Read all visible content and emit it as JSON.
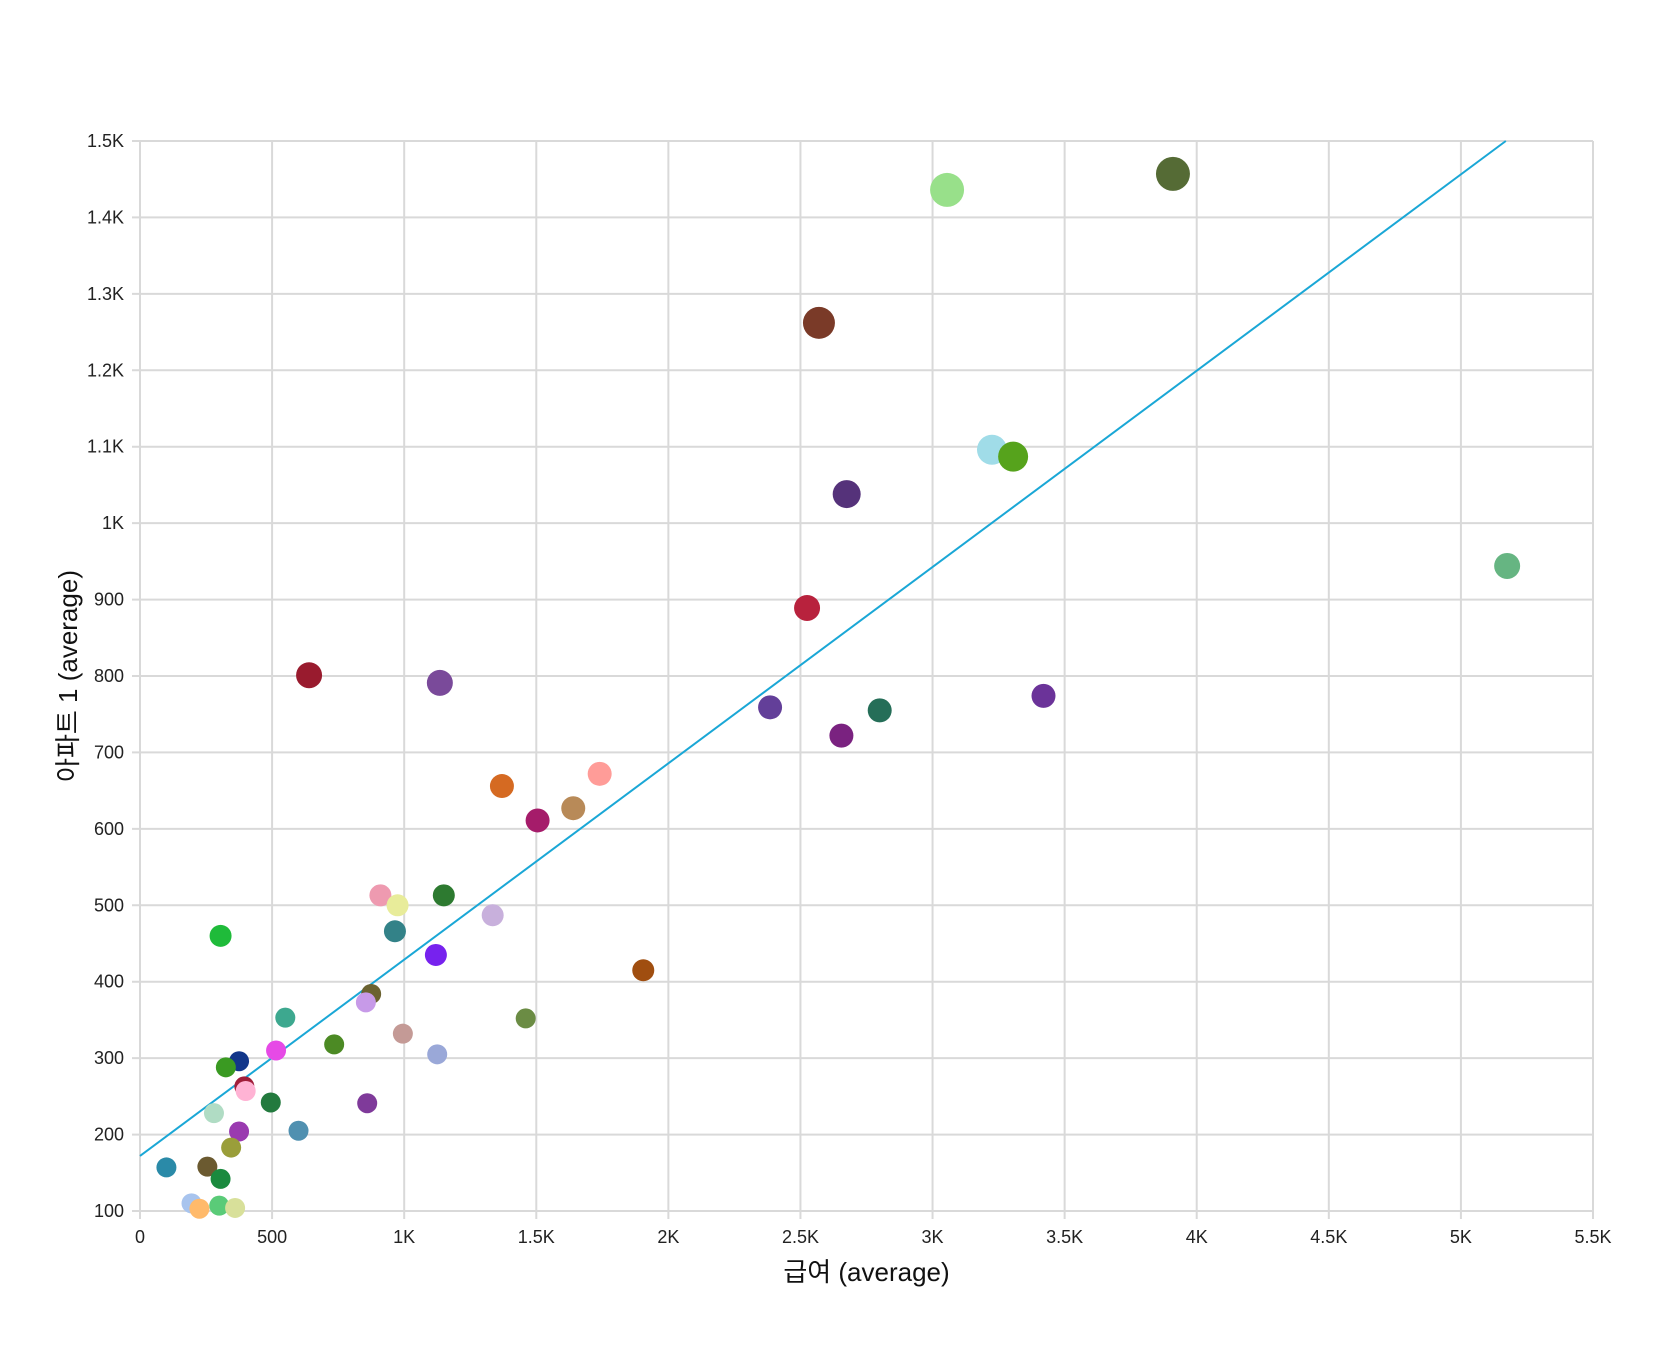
{
  "chart_data": {
    "type": "scatter",
    "title": "",
    "xlabel": "급여 (average)",
    "ylabel": "아파트 1 (average)",
    "xlim": [
      0,
      5500
    ],
    "ylim": [
      100,
      1500
    ],
    "x_ticks": [
      0,
      500,
      1000,
      1500,
      2000,
      2500,
      3000,
      3500,
      4000,
      4500,
      5000,
      5500
    ],
    "x_tick_labels": [
      "0",
      "500",
      "1K",
      "1.5K",
      "2K",
      "2.5K",
      "3K",
      "3.5K",
      "4K",
      "4.5K",
      "5K",
      "5.5K"
    ],
    "y_ticks": [
      100,
      200,
      300,
      400,
      500,
      600,
      700,
      800,
      900,
      1000,
      1100,
      1200,
      1300,
      1400,
      1500
    ],
    "y_tick_labels": [
      "100",
      "200",
      "300",
      "400",
      "500",
      "600",
      "700",
      "800",
      "900",
      "1K",
      "1.1K",
      "1.2K",
      "1.3K",
      "1.4K",
      "1.5K"
    ],
    "trendline": {
      "color": "#1aa7d6",
      "x": [
        0,
        5170
      ],
      "y": [
        172,
        1500
      ]
    },
    "points": [
      {
        "x": 3910,
        "y": 1457,
        "size": 17,
        "color": "#556b35"
      },
      {
        "x": 3055,
        "y": 1436,
        "size": 17,
        "color": "#98e08a"
      },
      {
        "x": 2570,
        "y": 1262,
        "size": 16,
        "color": "#7a3a28"
      },
      {
        "x": 3225,
        "y": 1096,
        "size": 15,
        "color": "#a0dce8"
      },
      {
        "x": 3305,
        "y": 1087,
        "size": 15,
        "color": "#56a31c"
      },
      {
        "x": 2675,
        "y": 1038,
        "size": 14,
        "color": "#55327a"
      },
      {
        "x": 5175,
        "y": 944,
        "size": 13,
        "color": "#66b582"
      },
      {
        "x": 2525,
        "y": 889,
        "size": 13,
        "color": "#b8223d"
      },
      {
        "x": 640,
        "y": 801,
        "size": 13,
        "color": "#991b2e"
      },
      {
        "x": 1135,
        "y": 791,
        "size": 13,
        "color": "#7a4a9a"
      },
      {
        "x": 3420,
        "y": 774,
        "size": 12,
        "color": "#6b3399"
      },
      {
        "x": 2385,
        "y": 759,
        "size": 12,
        "color": "#633f99"
      },
      {
        "x": 2800,
        "y": 755,
        "size": 12,
        "color": "#256e58"
      },
      {
        "x": 2655,
        "y": 722,
        "size": 12,
        "color": "#7a2280"
      },
      {
        "x": 1740,
        "y": 672,
        "size": 12,
        "color": "#ff9c98"
      },
      {
        "x": 1370,
        "y": 656,
        "size": 12,
        "color": "#d56a22"
      },
      {
        "x": 1640,
        "y": 627,
        "size": 12,
        "color": "#b88a58"
      },
      {
        "x": 1505,
        "y": 611,
        "size": 12,
        "color": "#a51c6a"
      },
      {
        "x": 910,
        "y": 513,
        "size": 11,
        "color": "#ee9ab0"
      },
      {
        "x": 1150,
        "y": 513,
        "size": 11,
        "color": "#2d7a30"
      },
      {
        "x": 975,
        "y": 500,
        "size": 11,
        "color": "#e8ec9a"
      },
      {
        "x": 1335,
        "y": 487,
        "size": 11,
        "color": "#c8b0dc"
      },
      {
        "x": 965,
        "y": 466,
        "size": 11,
        "color": "#338288"
      },
      {
        "x": 305,
        "y": 460,
        "size": 11,
        "color": "#1fbb3a"
      },
      {
        "x": 1120,
        "y": 435,
        "size": 11,
        "color": "#7722ee"
      },
      {
        "x": 1905,
        "y": 415,
        "size": 11,
        "color": "#a04e10"
      },
      {
        "x": 875,
        "y": 384,
        "size": 10,
        "color": "#6b6230"
      },
      {
        "x": 855,
        "y": 373,
        "size": 10,
        "color": "#c79ae8"
      },
      {
        "x": 550,
        "y": 353,
        "size": 10,
        "color": "#3da88f"
      },
      {
        "x": 1460,
        "y": 352,
        "size": 10,
        "color": "#6b8c44"
      },
      {
        "x": 995,
        "y": 332,
        "size": 10,
        "color": "#c49a96"
      },
      {
        "x": 735,
        "y": 318,
        "size": 10,
        "color": "#4c8a24"
      },
      {
        "x": 515,
        "y": 310,
        "size": 10,
        "color": "#e64ae6"
      },
      {
        "x": 1125,
        "y": 305,
        "size": 10,
        "color": "#9aa8d8"
      },
      {
        "x": 375,
        "y": 296,
        "size": 10,
        "color": "#12368a"
      },
      {
        "x": 325,
        "y": 288,
        "size": 10,
        "color": "#3a9a22"
      },
      {
        "x": 395,
        "y": 263,
        "size": 10,
        "color": "#a01e3a"
      },
      {
        "x": 400,
        "y": 257,
        "size": 10,
        "color": "#ffb3d4"
      },
      {
        "x": 495,
        "y": 242,
        "size": 10,
        "color": "#237a3e"
      },
      {
        "x": 860,
        "y": 241,
        "size": 10,
        "color": "#7f3a9a"
      },
      {
        "x": 280,
        "y": 228,
        "size": 10,
        "color": "#b0dcc4"
      },
      {
        "x": 375,
        "y": 204,
        "size": 10,
        "color": "#9a3ab0"
      },
      {
        "x": 600,
        "y": 205,
        "size": 10,
        "color": "#5090b0"
      },
      {
        "x": 345,
        "y": 183,
        "size": 10,
        "color": "#9a9e3a"
      },
      {
        "x": 255,
        "y": 158,
        "size": 10,
        "color": "#6b5a30"
      },
      {
        "x": 100,
        "y": 157,
        "size": 10,
        "color": "#2a8aa8"
      },
      {
        "x": 305,
        "y": 142,
        "size": 10,
        "color": "#1a8a3e"
      },
      {
        "x": 195,
        "y": 110,
        "size": 10,
        "color": "#a8c4ee"
      },
      {
        "x": 300,
        "y": 107,
        "size": 10,
        "color": "#5acb78"
      },
      {
        "x": 225,
        "y": 103,
        "size": 10,
        "color": "#ffba6b"
      },
      {
        "x": 360,
        "y": 104,
        "size": 10,
        "color": "#d8e09a"
      }
    ]
  }
}
